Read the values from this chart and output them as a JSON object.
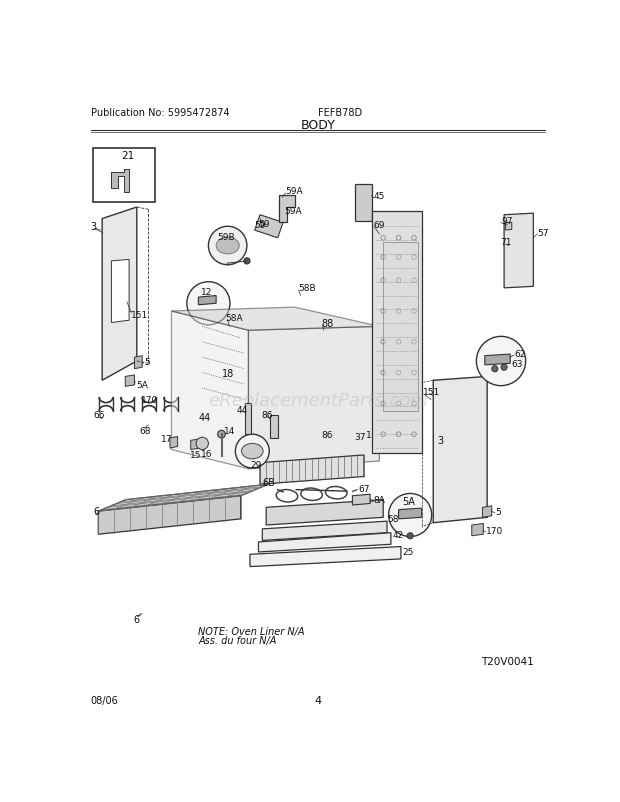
{
  "title": "BODY",
  "pub_no": "Publication No: 5995472874",
  "model": "FEFB78D",
  "date": "08/06",
  "page": "4",
  "diagram_id": "T20V0041",
  "note_line1": "NOTE: Oven Liner N/A",
  "note_line2": "Ass. du four N/A",
  "watermark": "eReplacementParts.com",
  "bg_color": "#ffffff",
  "lc": "#333333",
  "tc": "#111111",
  "gray1": "#c8c8c8",
  "gray2": "#d8d8d8",
  "gray3": "#e4e4e4",
  "gray4": "#eeeeee",
  "gray5": "#aaaaaa"
}
